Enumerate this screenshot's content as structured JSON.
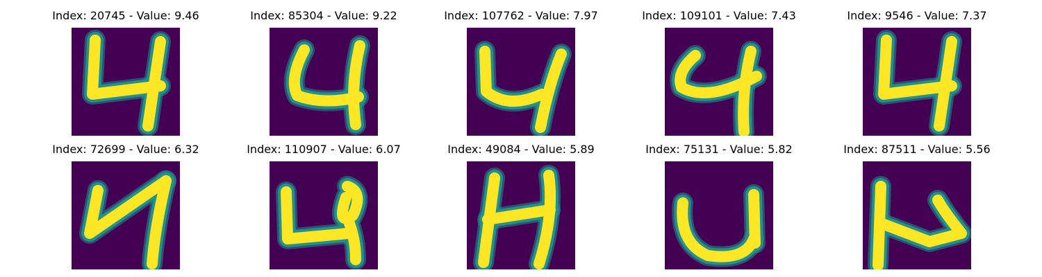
{
  "colors": {
    "background": "#440154",
    "stroke_mid": "#21918c",
    "stroke_core": "#fde725"
  },
  "panels": [
    {
      "title": "Index: 20745 - Value: 9.46",
      "glyph": "digit-4-tall"
    },
    {
      "title": "Index: 85304 - Value: 9.22",
      "glyph": "digit-4-round"
    },
    {
      "title": "Index: 107762 - Value: 7.97",
      "glyph": "digit-4-bold"
    },
    {
      "title": "Index: 109101 - Value: 7.43",
      "glyph": "digit-4-hook"
    },
    {
      "title": "Index: 9546 - Value: 7.37",
      "glyph": "digit-4-tall"
    },
    {
      "title": "Index: 72699 - Value: 6.32",
      "glyph": "digit-4-slanted"
    },
    {
      "title": "Index: 110907 - Value: 6.07",
      "glyph": "digit-4-loop"
    },
    {
      "title": "Index: 49084 - Value: 5.89",
      "glyph": "digit-4-h-shape"
    },
    {
      "title": "Index: 75131 - Value: 5.82",
      "glyph": "digit-4-u-shape"
    },
    {
      "title": "Index: 87511 - Value: 5.56",
      "glyph": "digit-4-zigzag"
    }
  ]
}
